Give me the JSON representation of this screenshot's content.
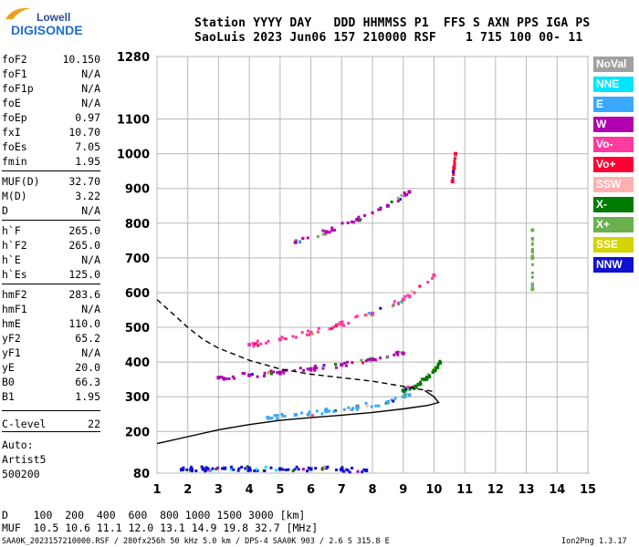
{
  "brand": {
    "line1": "Lowell",
    "line2": "DIGISONDE"
  },
  "header": {
    "row1": "Station YYYY DAY   DDD HHMMSS P1  FFS S AXN PPS IGA PS",
    "row2": "SaoLuis 2023 Jun06 157 210000 RSF    1 715 100 00- 11"
  },
  "params": [
    {
      "k": "foF2",
      "v": "10.150"
    },
    {
      "k": "foF1",
      "v": "N/A"
    },
    {
      "k": "foF1p",
      "v": "N/A"
    },
    {
      "k": "foE",
      "v": "N/A"
    },
    {
      "k": "foEp",
      "v": "0.97"
    },
    {
      "k": "fxI",
      "v": "10.70"
    },
    {
      "k": "foEs",
      "v": "7.05"
    },
    {
      "k": "fmin",
      "v": "1.95"
    },
    {
      "k": "MUF(D)",
      "v": "32.70"
    },
    {
      "k": "M(D)",
      "v": "3.22"
    },
    {
      "k": "D",
      "v": "N/A"
    },
    {
      "k": "h`F",
      "v": "265.0"
    },
    {
      "k": "h`F2",
      "v": "265.0"
    },
    {
      "k": "h`E",
      "v": "N/A"
    },
    {
      "k": "h`Es",
      "v": "125.0"
    },
    {
      "k": "hmF2",
      "v": "283.6"
    },
    {
      "k": "hmF1",
      "v": "N/A"
    },
    {
      "k": "hmE",
      "v": "110.0"
    },
    {
      "k": "yF2",
      "v": "65.2"
    },
    {
      "k": "yF1",
      "v": "N/A"
    },
    {
      "k": "yE",
      "v": "20.0"
    },
    {
      "k": "B0",
      "v": "66.3"
    },
    {
      "k": "B1",
      "v": "1.95"
    },
    {
      "k": "C-level",
      "v": "22"
    }
  ],
  "auto": {
    "label": "Auto:",
    "name": "Artist5",
    "version": "500200"
  },
  "legend": [
    {
      "label": "NoVal",
      "color": "#a0a0a0"
    },
    {
      "label": "NNE",
      "color": "#00e5ff"
    },
    {
      "label": "E",
      "color": "#3aa8ff"
    },
    {
      "label": "W",
      "color": "#b000b0"
    },
    {
      "label": "Vo-",
      "color": "#ff3aa0"
    },
    {
      "label": "Vo+",
      "color": "#ff0033"
    },
    {
      "label": "SSW",
      "color": "#ffb0b0"
    },
    {
      "label": "X-",
      "color": "#007a00"
    },
    {
      "label": "X+",
      "color": "#6ab04c"
    },
    {
      "label": "SSE",
      "color": "#d4d400"
    },
    {
      "label": "NNW",
      "color": "#1010d0"
    }
  ],
  "footer": {
    "line1": "D    100  200  400  600  800 1000 1500 3000 [km]",
    "line2": "MUF  10.5 10.6 11.1 12.0 13.1 14.9 19.8 32.7 [MHz]",
    "file": "SAA0K_2023157210000.RSF / 280fx256h 50 kHz 5.0 km / DPS-4 SAA0K 903 / 2.6 S 315.8 E",
    "version": "Ion2Png 1.3.17"
  },
  "chart_data": {
    "type": "scatter",
    "xlim": [
      1,
      15
    ],
    "ylim": [
      80,
      1280
    ],
    "x_ticks": [
      1,
      2,
      3,
      4,
      5,
      6,
      7,
      8,
      9,
      10,
      11,
      12,
      13,
      14,
      15
    ],
    "y_ticks": [
      80,
      200,
      300,
      400,
      500,
      600,
      700,
      800,
      900,
      1000,
      1100,
      1280
    ],
    "grid": true,
    "legend_position": "right",
    "series": [
      {
        "name": "NNW",
        "color": "#1010d0",
        "x": [
          1.8,
          2.5,
          3.2,
          4.0,
          5.0,
          6.0,
          7.0,
          7.8
        ],
        "y": [
          90,
          92,
          94,
          94,
          92,
          92,
          90,
          88
        ]
      },
      {
        "name": "X-",
        "color": "#007a00",
        "x": [
          9.0,
          9.4,
          9.7,
          10.0,
          10.2
        ],
        "y": [
          318,
          330,
          350,
          375,
          398
        ]
      },
      {
        "name": "E",
        "color": "#3aa8ff",
        "x": [
          4.6,
          5.5,
          6.5,
          7.5,
          8.5,
          9.2
        ],
        "y": [
          240,
          248,
          258,
          270,
          285,
          305
        ]
      },
      {
        "name": "W",
        "color": "#b000b0",
        "x": [
          3.0,
          4.0,
          5.0,
          6.0,
          7.0,
          8.0,
          9.0
        ],
        "y": [
          355,
          362,
          370,
          380,
          392,
          408,
          425
        ]
      },
      {
        "name": "Vo-",
        "color": "#ff3aa0",
        "x": [
          4.0,
          5.0,
          6.0,
          7.0,
          8.0,
          9.0,
          10.0
        ],
        "y": [
          450,
          465,
          485,
          510,
          540,
          580,
          650
        ]
      },
      {
        "name": "W",
        "color": "#b000b0",
        "x": [
          5.5,
          6.5,
          7.5,
          8.5,
          9.2
        ],
        "y": [
          745,
          775,
          810,
          850,
          890
        ]
      },
      {
        "name": "Vo+",
        "color": "#ff0033",
        "x": [
          10.6,
          10.65,
          10.7
        ],
        "y": [
          920,
          960,
          1000
        ]
      },
      {
        "name": "X+",
        "color": "#6ab04c",
        "x": [
          13.2,
          13.2,
          13.2
        ],
        "y": [
          610,
          700,
          780
        ]
      }
    ],
    "profile_solid": {
      "x": [
        1.0,
        2.0,
        3.0,
        4.0,
        5.0,
        6.0,
        7.0,
        8.0,
        9.0,
        9.8,
        10.15,
        10.0,
        9.7
      ],
      "y": [
        165,
        185,
        205,
        220,
        232,
        240,
        247,
        255,
        265,
        275,
        283.6,
        300,
        318
      ]
    },
    "profile_dashed": {
      "x": [
        1.0,
        1.5,
        2.0,
        2.5,
        3.0,
        4.0,
        5.0,
        6.0,
        7.0,
        8.0,
        9.0,
        9.5,
        10.0
      ],
      "y": [
        580,
        540,
        500,
        465,
        440,
        405,
        380,
        365,
        355,
        345,
        330,
        322,
        315
      ]
    }
  }
}
